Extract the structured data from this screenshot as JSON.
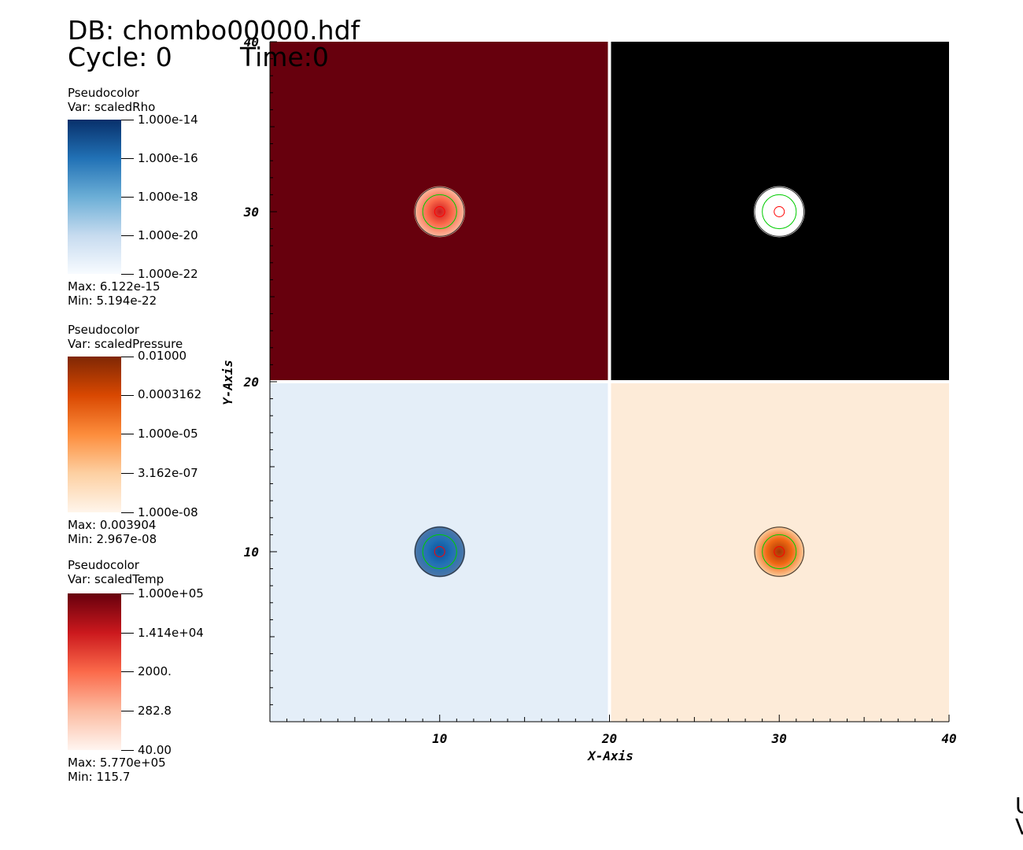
{
  "header": {
    "db": "DB: chombo00000.hdf",
    "cycle": "Cycle: 0",
    "time": "Time:0"
  },
  "legends": [
    {
      "plot": "Pseudocolor",
      "var": "Var: scaledRho",
      "ticks": [
        "1.000e-14",
        "1.000e-16",
        "1.000e-18",
        "1.000e-20",
        "1.000e-22"
      ],
      "max": "Max:  6.122e-15",
      "min": "Min:  5.194e-22",
      "colors": [
        "#08306b",
        "#2171b5",
        "#6baed6",
        "#c6dbef",
        "#f7fbff"
      ]
    },
    {
      "plot": "Pseudocolor",
      "var": "Var: scaledPressure",
      "ticks": [
        "0.01000",
        "0.0003162",
        "1.000e-05",
        "3.162e-07",
        "1.000e-08"
      ],
      "max": "Max:  0.003904",
      "min": "Min:  2.967e-08",
      "colors": [
        "#7f2704",
        "#d94801",
        "#fd8d3c",
        "#fdd0a2",
        "#fff5eb"
      ]
    },
    {
      "plot": "Pseudocolor",
      "var": "Var: scaledTemp",
      "ticks": [
        "1.000e+05",
        "1.414e+04",
        "2000.",
        "282.8",
        "40.00"
      ],
      "max": "Max:  5.770e+05",
      "min": "Min:  115.7",
      "colors": [
        "#67000d",
        "#cb181d",
        "#fb6a4a",
        "#fcbba1",
        "#fff5f0"
      ]
    }
  ],
  "chart_data": {
    "type": "heatmap",
    "xlabel": "X-Axis",
    "ylabel": "Y-Axis",
    "xlim": [
      0,
      40
    ],
    "ylim": [
      0,
      40
    ],
    "x_ticks": [
      "10",
      "20",
      "30",
      "40"
    ],
    "y_ticks": [
      "10",
      "20",
      "30",
      "40"
    ],
    "panels": [
      {
        "name": "scaledTemp",
        "x_range": [
          0,
          20
        ],
        "y_range": [
          20,
          40
        ],
        "background": "#67000d",
        "blob_center": [
          10,
          30
        ],
        "blob_radius": 1.5,
        "blob_colors": [
          "#fcbba1",
          "#fb6a4a",
          "#cb181d"
        ]
      },
      {
        "name": "blank",
        "x_range": [
          20,
          40
        ],
        "y_range": [
          20,
          40
        ],
        "background": "#000000",
        "blob_center": [
          30,
          30
        ],
        "blob_radius": 1.5,
        "blob_colors": [
          "#ffffff",
          "#ffffff",
          "#ffffff"
        ]
      },
      {
        "name": "scaledRho",
        "x_range": [
          0,
          20
        ],
        "y_range": [
          0,
          20
        ],
        "background": "#e4eef8",
        "blob_center": [
          10,
          10
        ],
        "blob_radius": 1.5,
        "blob_colors": [
          "#4f77a8",
          "#2171b5",
          "#08519c"
        ]
      },
      {
        "name": "scaledPressure",
        "x_range": [
          20,
          40
        ],
        "y_range": [
          0,
          20
        ],
        "background": "#fdebd8",
        "blob_center": [
          30,
          10
        ],
        "blob_radius": 1.5,
        "blob_colors": [
          "#fdd0a2",
          "#f16913",
          "#a63603"
        ]
      }
    ],
    "contours": [
      {
        "radius": 1.45,
        "color": "#333333"
      },
      {
        "radius": 1.0,
        "color": "#00cc00"
      },
      {
        "radius": 0.3,
        "color": "#ff0000"
      }
    ]
  },
  "corner": {
    "line1": "U",
    "line2": "V"
  }
}
